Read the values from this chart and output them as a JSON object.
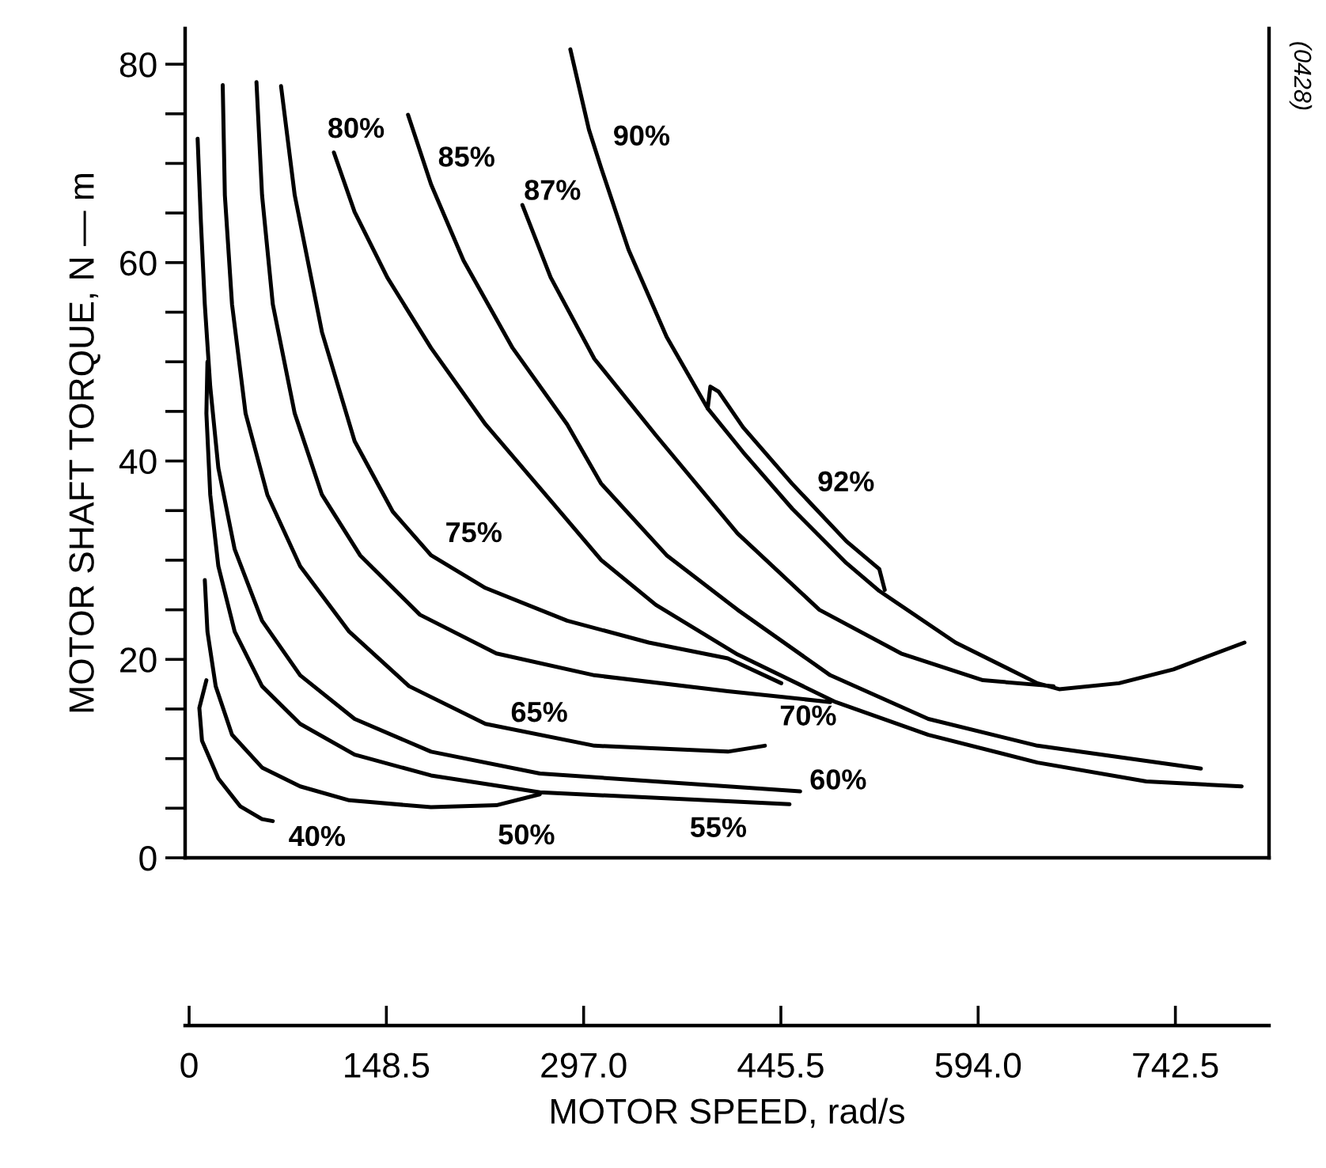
{
  "chart_data": {
    "type": "line",
    "xlabel": "MOTOR SPEED, rad/s",
    "ylabel": "MOTOR SHAFT TORQUE, N — m",
    "xlim": [
      -3,
      813
    ],
    "ylim": [
      0,
      83.6
    ],
    "xticks": [
      0,
      148.5,
      {
        "value": 297,
        "label": "297.0"
      },
      445.5,
      {
        "value": 594,
        "label": "594.0"
      },
      742.5
    ],
    "yticks": [
      0,
      {
        "value": 5,
        "label": null
      },
      {
        "value": 10,
        "label": null
      },
      {
        "value": 15,
        "label": null
      },
      20,
      {
        "value": 25,
        "label": null
      },
      {
        "value": 30,
        "label": null
      },
      {
        "value": 35,
        "label": null
      },
      40,
      {
        "value": 45,
        "label": null
      },
      {
        "value": 50,
        "label": null
      },
      {
        "value": 55,
        "label": null
      },
      60,
      {
        "value": 65,
        "label": null
      },
      {
        "value": 70,
        "label": null
      },
      {
        "value": 75,
        "label": null
      },
      80
    ],
    "series": [
      {
        "name": "40%",
        "color": "#000000",
        "x": [
          13.0,
          7.7,
          9.7,
          22.0,
          38.4,
          54.9,
          63.0
        ],
        "values": [
          17.9,
          15.1,
          11.8,
          8.0,
          5.2,
          3.9,
          3.7
        ]
      },
      {
        "name": "50%",
        "color": "#000000",
        "x": [
          11.8,
          13.8,
          20.0,
          32.3,
          54.9,
          83.6,
          120.5,
          182.1,
          231.3,
          264.0
        ],
        "values": [
          28.0,
          22.8,
          17.3,
          12.4,
          9.1,
          7.2,
          5.8,
          5.1,
          5.3,
          6.4
        ]
      },
      {
        "name": "55%",
        "color": "#000000",
        "x": [
          13.8,
          13.0,
          15.9,
          22.0,
          34.3,
          54.9,
          83.6,
          124.6,
          182.1,
          264.1,
          405.6,
          452.0
        ],
        "values": [
          50.0,
          44.8,
          36.6,
          29.4,
          22.8,
          17.3,
          13.5,
          10.4,
          8.3,
          6.6,
          5.7,
          5.4
        ]
      },
      {
        "name": "60%",
        "color": "#000000",
        "x": [
          6.4,
          8.9,
          11.8,
          15.9,
          22.0,
          34.3,
          54.9,
          83.6,
          124.6,
          182.1,
          264.1,
          405.6,
          460.0
        ],
        "values": [
          72.5,
          64.0,
          55.8,
          47.5,
          39.3,
          31.1,
          23.9,
          18.4,
          14.0,
          10.7,
          8.5,
          7.2,
          6.7
        ]
      },
      {
        "name": "65%",
        "color": "#000000",
        "x": [
          25.3,
          26.9,
          32.3,
          42.5,
          58.9,
          83.6,
          120.5,
          165.6,
          223.1,
          305.1,
          405.6,
          433.5
        ],
        "values": [
          77.9,
          66.8,
          55.8,
          44.8,
          36.6,
          29.4,
          22.8,
          17.3,
          13.5,
          11.3,
          10.7,
          11.3
        ]
      },
      {
        "name": "70%",
        "color": "#000000",
        "x": [
          50.7,
          54.9,
          63.0,
          79.5,
          100.0,
          128.7,
          173.8,
          231.3,
          305.1,
          405.6,
          482.7
        ],
        "values": [
          78.2,
          66.8,
          55.8,
          44.8,
          36.6,
          30.5,
          24.5,
          20.6,
          18.4,
          16.8,
          15.7
        ]
      },
      {
        "name": "75%",
        "color": "#000000",
        "x": [
          69.2,
          79.5,
          100.0,
          124.6,
          153.3,
          182.1,
          223.1,
          284.6,
          346.1,
          405.6,
          445.8
        ],
        "values": [
          77.8,
          66.8,
          53.0,
          42.0,
          34.9,
          30.5,
          27.2,
          23.9,
          21.7,
          20.1,
          17.6
        ]
      },
      {
        "name": "80%",
        "color": "#000000",
        "x": [
          109.0,
          124.6,
          149.2,
          182.1,
          223.1,
          272.2,
          310.3,
          351.4,
          412.9,
          486.7,
          556.5,
          638.6,
          720.6,
          792.4
        ],
        "values": [
          71.1,
          65.1,
          58.5,
          51.4,
          43.7,
          36.0,
          30.0,
          25.5,
          20.5,
          15.7,
          12.4,
          9.6,
          7.7,
          7.2
        ]
      },
      {
        "name": "85%",
        "color": "#000000",
        "x": [
          164.8,
          182.1,
          206.6,
          243.5,
          284.6,
          310.3,
          359.5,
          412.9,
          482.7,
          556.5,
          638.6,
          761.7
        ],
        "values": [
          74.9,
          67.9,
          60.2,
          51.4,
          43.7,
          37.7,
          30.5,
          25.0,
          18.4,
          14.0,
          11.3,
          9.0
        ]
      },
      {
        "name": "87%",
        "color": "#000000",
        "x": [
          250.9,
          272.2,
          305.1,
          351.4,
          412.9,
          474.5,
          536.0,
          597.6,
          650.8
        ],
        "values": [
          65.8,
          58.5,
          50.3,
          42.6,
          32.7,
          25.0,
          20.6,
          17.9,
          17.3
        ]
      },
      {
        "name": "90%",
        "color": "#000000",
        "x": [
          287.0,
          301.0,
          310.3,
          330.8,
          359.5,
          390.4,
          417.0,
          454.0,
          494.9,
          519.6,
          577.0,
          638.6,
          655.0,
          700.1,
          741.1,
          794.5
        ],
        "values": [
          81.5,
          73.4,
          69.5,
          61.3,
          52.5,
          45.3,
          40.9,
          35.2,
          29.7,
          26.9,
          21.7,
          17.6,
          17.0,
          17.6,
          19.0,
          21.7
        ]
      },
      {
        "name": "92%",
        "color": "#000000",
        "x": [
          390.4,
          392.4,
          398.6,
          417.0,
          454.0,
          494.9,
          519.6,
          523.7
        ],
        "values": [
          45.3,
          47.5,
          47.0,
          43.4,
          37.7,
          31.9,
          29.1,
          27.0
        ]
      }
    ],
    "annotations": [
      "(0428)"
    ]
  }
}
